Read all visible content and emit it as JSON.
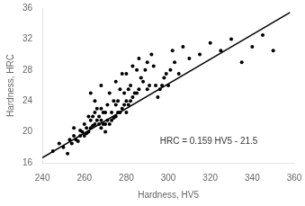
{
  "chart_data": {
    "type": "scatter",
    "xlabel": "Hardness, HV5",
    "ylabel": "Hardness, HRC",
    "xlim": [
      240,
      360
    ],
    "ylim": [
      16,
      36
    ],
    "xticks": [
      240,
      260,
      280,
      300,
      320,
      340,
      360
    ],
    "yticks": [
      16,
      20,
      24,
      28,
      32,
      36
    ],
    "grid": false,
    "annotations": [
      {
        "text": "HRC = 0.159 HV5 - 21.5",
        "x": 296,
        "y": 18.2
      }
    ],
    "series": [
      {
        "type": "scatter",
        "marker": "circle",
        "color": "#000000",
        "x": [
          245,
          248,
          250,
          252,
          253,
          254,
          255,
          255,
          256,
          257,
          258,
          258,
          259,
          260,
          260,
          261,
          261,
          262,
          262,
          263,
          263,
          263,
          264,
          264,
          265,
          265,
          265,
          266,
          266,
          267,
          267,
          268,
          268,
          268,
          268,
          269,
          269,
          270,
          270,
          270,
          271,
          271,
          272,
          272,
          273,
          273,
          274,
          274,
          275,
          275,
          275,
          276,
          276,
          277,
          277,
          278,
          278,
          279,
          279,
          280,
          280,
          280,
          281,
          281,
          282,
          282,
          283,
          283,
          284,
          285,
          285,
          286,
          286,
          287,
          288,
          289,
          290,
          290,
          291,
          292,
          293,
          294,
          295,
          296,
          297,
          298,
          299,
          300,
          301,
          302,
          303,
          305,
          307,
          310,
          315,
          320,
          325,
          330,
          335,
          340,
          345,
          350
        ],
        "values": [
          17.5,
          18.5,
          18.0,
          17.2,
          19.0,
          18.5,
          19.5,
          20.5,
          19.0,
          18.8,
          19.5,
          20.2,
          20.0,
          19.5,
          21.0,
          19.8,
          20.5,
          20.0,
          22.0,
          20.5,
          21.5,
          25.0,
          20.8,
          22.0,
          21.0,
          22.5,
          24.0,
          21.5,
          23.0,
          21.0,
          22.0,
          20.5,
          21.5,
          23.0,
          26.0,
          21.0,
          22.5,
          20.0,
          21.0,
          22.5,
          21.5,
          23.5,
          21.0,
          25.0,
          21.5,
          22.5,
          21.8,
          24.0,
          22.0,
          23.5,
          26.5,
          22.5,
          24.0,
          22.5,
          25.5,
          23.0,
          27.5,
          23.5,
          25.0,
          22.5,
          24.0,
          27.5,
          23.5,
          25.5,
          24.0,
          26.0,
          24.5,
          28.5,
          25.0,
          25.0,
          28.0,
          25.5,
          29.5,
          27.0,
          26.5,
          28.0,
          25.5,
          29.0,
          26.0,
          30.0,
          28.5,
          26.0,
          24.5,
          25.5,
          26.0,
          27.0,
          27.5,
          26.0,
          28.0,
          30.5,
          29.0,
          27.5,
          31.0,
          29.5,
          30.0,
          31.5,
          30.5,
          32.0,
          29.0,
          31.0,
          32.5,
          30.5
        ]
      },
      {
        "type": "line",
        "line_style": "solid",
        "color": "#000000",
        "x": [
          240,
          358
        ],
        "values": [
          16.66,
          35.422
        ]
      }
    ]
  }
}
